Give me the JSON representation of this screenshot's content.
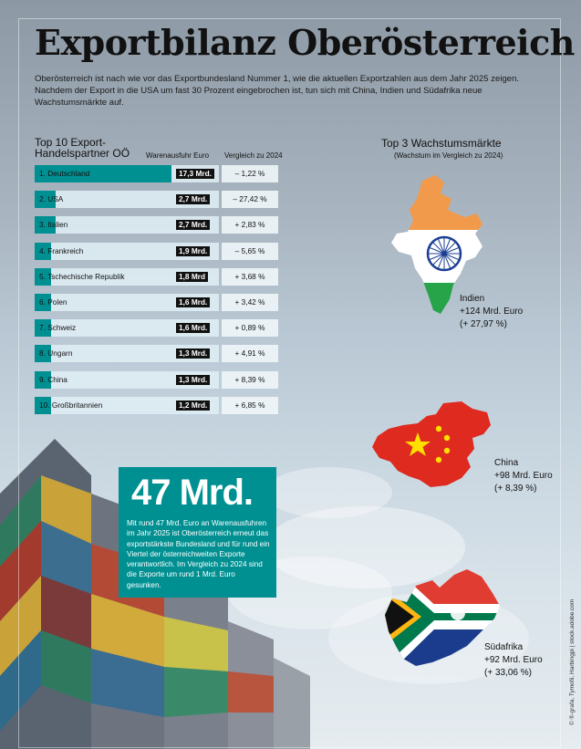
{
  "title": "Exportbilanz Oberösterreich",
  "intro": "Oberösterreich ist nach wie vor das Exportbundesland Nummer 1, wie die aktuellen Exportzahlen aus dem Jahr 2025 zeigen. Nachdem der Export in die USA um fast 30 Prozent eingebrochen ist, tun sich mit China, Indien und Südafrika neue Wachstumsmärkte auf.",
  "chart_data": [
    {
      "type": "bar",
      "title": "Top 10 Export-Handelspartner OÖ",
      "column_value_label": "Warenausfuhr Euro",
      "column_change_label": "Vergleich zu 2024",
      "categories": [
        "1. Deutschland",
        "2. USA",
        "3. Italien",
        "4. Frankreich",
        "5. Tschechische Republik",
        "6. Polen",
        "7. Schweiz",
        "8. Ungarn",
        "9. China",
        "10. Großbritannien"
      ],
      "values": [
        17.3,
        2.7,
        2.7,
        1.9,
        1.8,
        1.6,
        1.6,
        1.3,
        1.3,
        1.2
      ],
      "value_labels": [
        "17,3 Mrd.",
        "2,7 Mrd.",
        "2,7 Mrd.",
        "1,9 Mrd.",
        "1,8 Mrd",
        "1,6 Mrd.",
        "1,6 Mrd.",
        "1,3 Mrd.",
        "1,3 Mrd.",
        "1,2 Mrd."
      ],
      "changes": [
        "– 1,22 %",
        "– 27,42 %",
        "+ 2,83 %",
        "– 5,65 %",
        "+ 3,68 %",
        "+ 3,42 %",
        "+ 0,89 %",
        "+ 4,91 %",
        "+ 8,39 %",
        "+ 6,85 %"
      ],
      "bar_color": "#009092"
    }
  ],
  "growth": {
    "title": "Top 3 Wachstumsmärkte",
    "subtitle": "(Wachstum im Vergleich zu 2024)",
    "markets": [
      {
        "name": "Indien",
        "value": "+124 Mrd. Euro",
        "change": "(+ 27,97 %)"
      },
      {
        "name": "China",
        "value": "+98 Mrd. Euro",
        "change": "(+ 8,39 %)"
      },
      {
        "name": "Südafrika",
        "value": "+92 Mrd. Euro",
        "change": "(+ 33,06 %)"
      }
    ]
  },
  "highlight": {
    "number": "47 Mrd.",
    "text": "Mit rund 47 Mrd. Euro an Warenausfuhren im Jahr 2025 ist Oberösterreich erneut das exportstärkste Bundesland und für rund ein Viertel der österreichweiten Exporte verantwortlich. Im Vergleich zu 2024 sind die Exporte um rund 1 Mrd. Euro gesunken.",
    "color": "#009092"
  },
  "credit": "© ®-grafa, Tymofii, Harbingpi | stock.adobe.com"
}
